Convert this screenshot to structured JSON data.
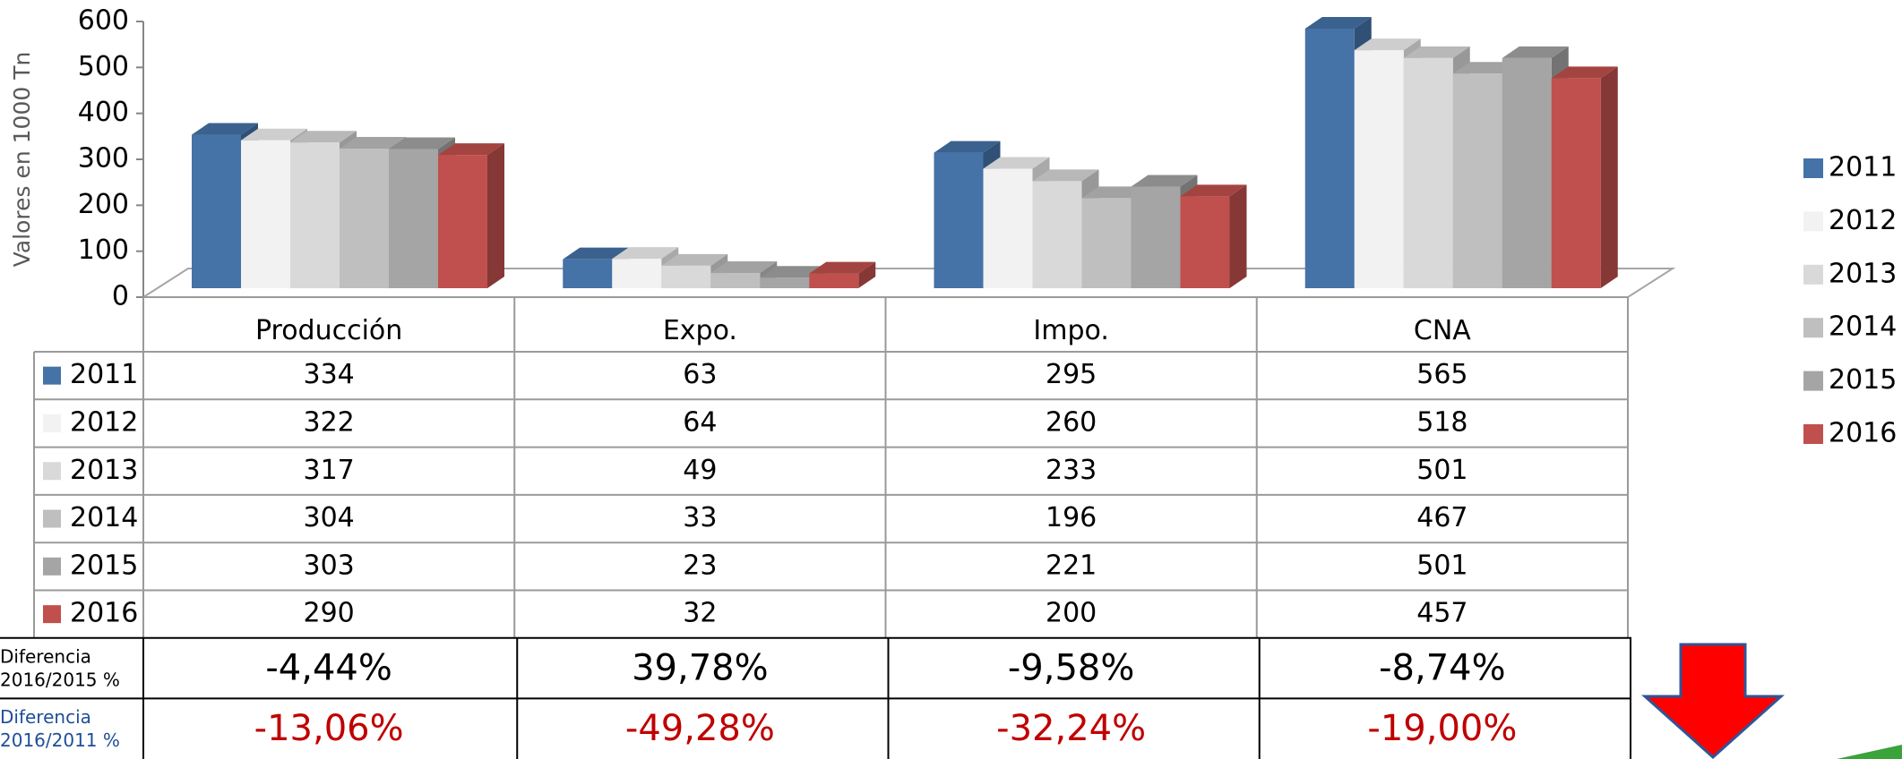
{
  "chart_data": {
    "type": "bar",
    "y_label": "Valores en 1000 Tn",
    "categories": [
      "Producción",
      "Expo.",
      "Impo.",
      "CNA"
    ],
    "series": [
      {
        "name": "2011",
        "color": "#4572a7",
        "values": [
          334,
          63,
          295,
          565
        ]
      },
      {
        "name": "2012",
        "color": "#f2f2f2",
        "values": [
          322,
          64,
          260,
          518
        ]
      },
      {
        "name": "2013",
        "color": "#d9d9d9",
        "values": [
          317,
          49,
          233,
          501
        ]
      },
      {
        "name": "2014",
        "color": "#bfbfbf",
        "values": [
          304,
          33,
          196,
          467
        ]
      },
      {
        "name": "2015",
        "color": "#a5a5a5",
        "values": [
          303,
          23,
          221,
          501
        ]
      },
      {
        "name": "2016",
        "color": "#c0504d",
        "values": [
          290,
          32,
          200,
          457
        ]
      }
    ],
    "ylim": [
      0,
      600
    ],
    "yticks": [
      0,
      100,
      200,
      300,
      400,
      500,
      600
    ],
    "legend": "right",
    "extra_rows": [
      {
        "label": "Diferencia 2016/2015 %",
        "cells": [
          "-4,44%",
          "39,78%",
          "-9,58%",
          "-8,74%"
        ],
        "color": "#000000",
        "label_color": "#000000"
      },
      {
        "label": "Diferencia 2016/2011 %",
        "cells": [
          "-13,06%",
          "-49,28%",
          "-32,24%",
          "-19,00%"
        ],
        "color": "#c00000",
        "label_color": "#1f4e99"
      }
    ]
  }
}
